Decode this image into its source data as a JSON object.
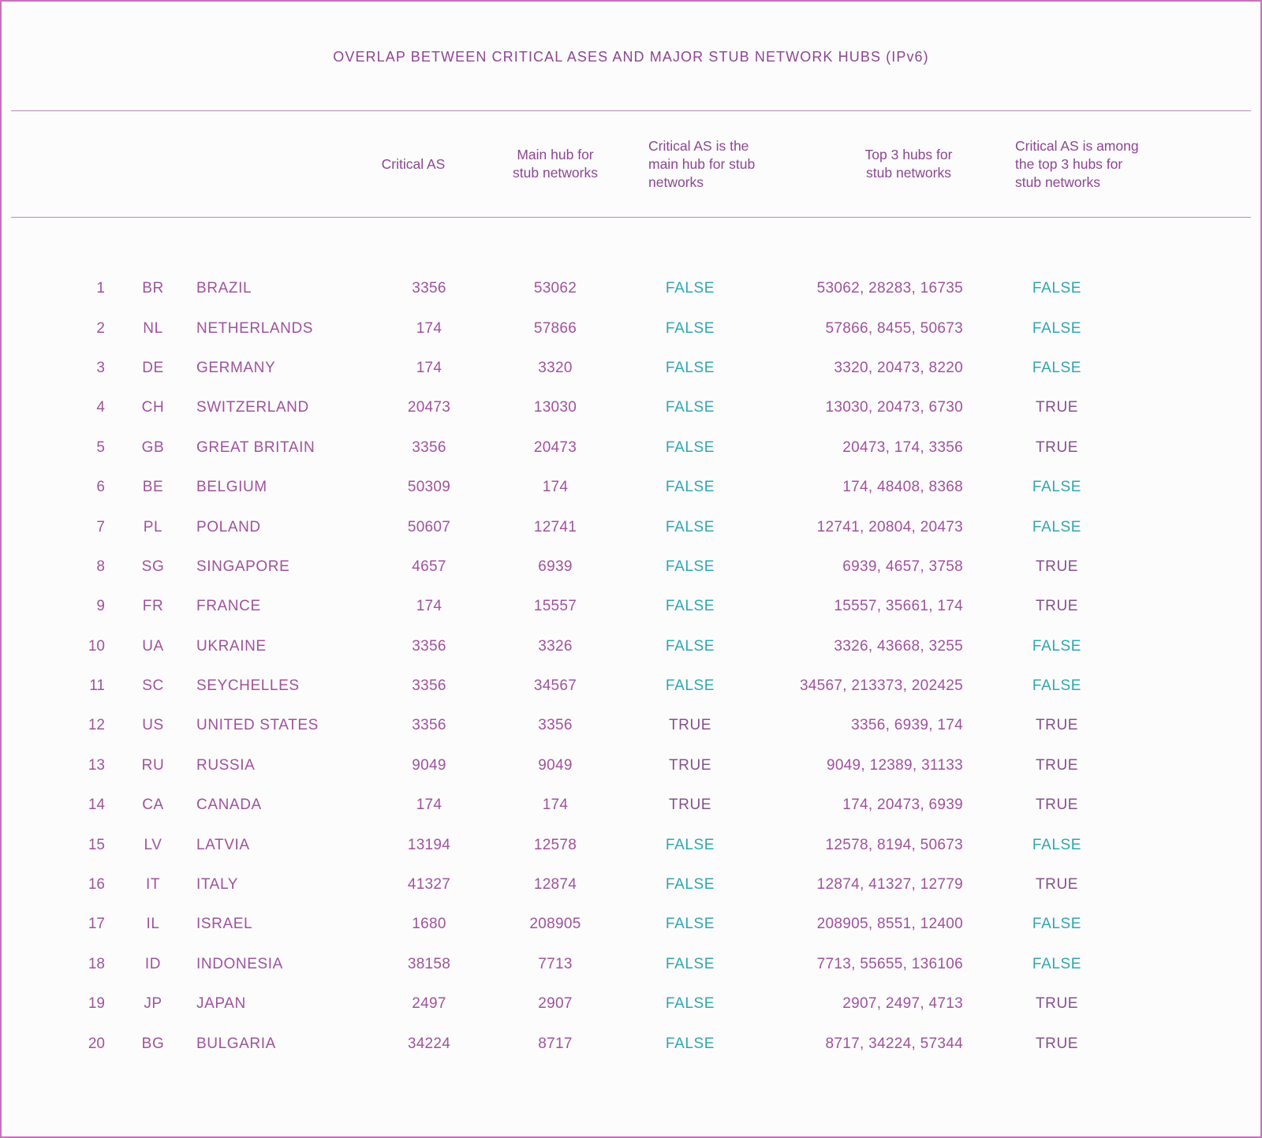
{
  "chart_data": {
    "type": "table",
    "title": "OVERLAP BETWEEN CRITICAL ASES AND MAJOR STUB NETWORK HUBS (IPv6)",
    "column_headers": [
      "Critical AS",
      "Main hub for stub networks",
      "Critical AS is the main hub for stub networks",
      "Top 3 hubs for stub networks",
      "Critical AS is among the top 3 hubs for stub networks"
    ],
    "header_lines": {
      "critical_as": [
        "Critical AS"
      ],
      "main_hub": [
        "Main hub for",
        "stub networks"
      ],
      "is_main_hub": [
        "Critical AS is the",
        "main hub for stub",
        "networks"
      ],
      "top3": [
        "Top 3 hubs for",
        "stub networks"
      ],
      "in_top3": [
        "Critical AS is among",
        "the top 3 hubs for",
        "stub networks"
      ]
    },
    "rows": [
      {
        "rank": "1",
        "code": "BR",
        "country": "BRAZIL",
        "critical_as": "3356",
        "main_hub": "53062",
        "is_main_hub": "FALSE",
        "top3": "53062, 28283, 16735",
        "in_top3": "FALSE"
      },
      {
        "rank": "2",
        "code": "NL",
        "country": "NETHERLANDS",
        "critical_as": "174",
        "main_hub": "57866",
        "is_main_hub": "FALSE",
        "top3": "57866, 8455, 50673",
        "in_top3": "FALSE"
      },
      {
        "rank": "3",
        "code": "DE",
        "country": "GERMANY",
        "critical_as": "174",
        "main_hub": "3320",
        "is_main_hub": "FALSE",
        "top3": "3320, 20473, 8220",
        "in_top3": "FALSE"
      },
      {
        "rank": "4",
        "code": "CH",
        "country": "SWITZERLAND",
        "critical_as": "20473",
        "main_hub": "13030",
        "is_main_hub": "FALSE",
        "top3": "13030, 20473, 6730",
        "in_top3": "TRUE"
      },
      {
        "rank": "5",
        "code": "GB",
        "country": "GREAT BRITAIN",
        "critical_as": "3356",
        "main_hub": "20473",
        "is_main_hub": "FALSE",
        "top3": "20473, 174, 3356",
        "in_top3": "TRUE"
      },
      {
        "rank": "6",
        "code": "BE",
        "country": "BELGIUM",
        "critical_as": "50309",
        "main_hub": "174",
        "is_main_hub": "FALSE",
        "top3": "174, 48408, 8368",
        "in_top3": "FALSE"
      },
      {
        "rank": "7",
        "code": "PL",
        "country": "POLAND",
        "critical_as": "50607",
        "main_hub": "12741",
        "is_main_hub": "FALSE",
        "top3": "12741, 20804, 20473",
        "in_top3": "FALSE"
      },
      {
        "rank": "8",
        "code": "SG",
        "country": "SINGAPORE",
        "critical_as": "4657",
        "main_hub": "6939",
        "is_main_hub": "FALSE",
        "top3": "6939, 4657, 3758",
        "in_top3": "TRUE"
      },
      {
        "rank": "9",
        "code": "FR",
        "country": "FRANCE",
        "critical_as": "174",
        "main_hub": "15557",
        "is_main_hub": "FALSE",
        "top3": "15557, 35661, 174",
        "in_top3": "TRUE"
      },
      {
        "rank": "10",
        "code": "UA",
        "country": "UKRAINE",
        "critical_as": "3356",
        "main_hub": "3326",
        "is_main_hub": "FALSE",
        "top3": "3326, 43668, 3255",
        "in_top3": "FALSE"
      },
      {
        "rank": "11",
        "code": "SC",
        "country": "SEYCHELLES",
        "critical_as": "3356",
        "main_hub": "34567",
        "is_main_hub": "FALSE",
        "top3": "34567, 213373, 202425",
        "in_top3": "FALSE"
      },
      {
        "rank": "12",
        "code": "US",
        "country": "UNITED STATES",
        "critical_as": "3356",
        "main_hub": "3356",
        "is_main_hub": "TRUE",
        "top3": "3356, 6939, 174",
        "in_top3": "TRUE"
      },
      {
        "rank": "13",
        "code": "RU",
        "country": "RUSSIA",
        "critical_as": "9049",
        "main_hub": "9049",
        "is_main_hub": "TRUE",
        "top3": "9049, 12389, 31133",
        "in_top3": "TRUE"
      },
      {
        "rank": "14",
        "code": "CA",
        "country": "CANADA",
        "critical_as": "174",
        "main_hub": "174",
        "is_main_hub": "TRUE",
        "top3": "174, 20473, 6939",
        "in_top3": "TRUE"
      },
      {
        "rank": "15",
        "code": "LV",
        "country": "LATVIA",
        "critical_as": "13194",
        "main_hub": "12578",
        "is_main_hub": "FALSE",
        "top3": "12578, 8194, 50673",
        "in_top3": "FALSE"
      },
      {
        "rank": "16",
        "code": "IT",
        "country": "ITALY",
        "critical_as": "41327",
        "main_hub": "12874",
        "is_main_hub": "FALSE",
        "top3": "12874, 41327, 12779",
        "in_top3": "TRUE"
      },
      {
        "rank": "17",
        "code": "IL",
        "country": "ISRAEL",
        "critical_as": "1680",
        "main_hub": "208905",
        "is_main_hub": "FALSE",
        "top3": "208905, 8551, 12400",
        "in_top3": "FALSE"
      },
      {
        "rank": "18",
        "code": "ID",
        "country": "INDONESIA",
        "critical_as": "38158",
        "main_hub": "7713",
        "is_main_hub": "FALSE",
        "top3": "7713, 55655, 136106",
        "in_top3": "FALSE"
      },
      {
        "rank": "19",
        "code": "JP",
        "country": "JAPAN",
        "critical_as": "2497",
        "main_hub": "2907",
        "is_main_hub": "FALSE",
        "top3": "2907, 2497, 4713",
        "in_top3": "TRUE"
      },
      {
        "rank": "20",
        "code": "BG",
        "country": "BULGARIA",
        "critical_as": "34224",
        "main_hub": "8717",
        "is_main_hub": "FALSE",
        "top3": "8717, 34224, 57344",
        "in_top3": "TRUE"
      }
    ],
    "colors": {
      "text_magenta": "#9e529c",
      "header_purple": "#8b4691",
      "true_value": "#84518c",
      "false_value": "#2ea6af",
      "page_border": "#c473bb",
      "rule_line": "#b78ab7"
    },
    "layout_hints": {
      "grid": "off",
      "row_separators": "none",
      "bool_true_style": "purple text",
      "bool_false_style": "teal text"
    }
  }
}
